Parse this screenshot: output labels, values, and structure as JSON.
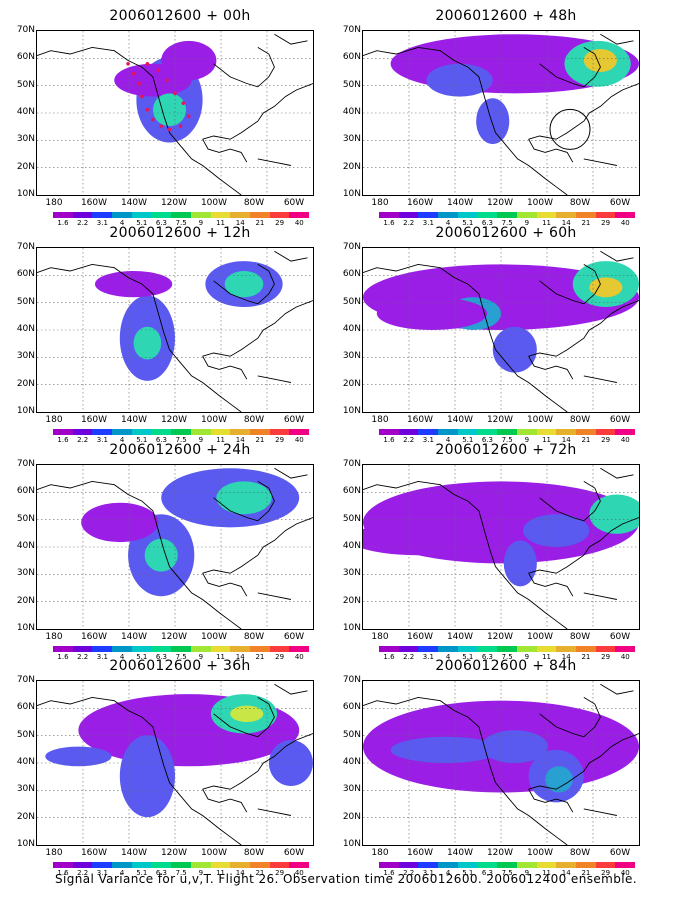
{
  "panels": [
    {
      "title": "2006012600 + 00h",
      "blobs": [
        [
          0.48,
          0.42,
          0.12,
          0.26,
          1
        ],
        [
          0.42,
          0.3,
          0.14,
          0.1,
          0
        ],
        [
          0.55,
          0.18,
          0.1,
          0.12,
          0
        ],
        [
          0.48,
          0.48,
          0.06,
          0.1,
          3
        ]
      ],
      "obs": true,
      "circle": false
    },
    {
      "title": "2006012600 + 12h",
      "blobs": [
        [
          0.4,
          0.55,
          0.1,
          0.26,
          1
        ],
        [
          0.4,
          0.58,
          0.05,
          0.1,
          3
        ],
        [
          0.75,
          0.22,
          0.14,
          0.14,
          1
        ],
        [
          0.75,
          0.22,
          0.07,
          0.08,
          3
        ],
        [
          0.35,
          0.22,
          0.14,
          0.08,
          0
        ]
      ],
      "obs": false,
      "circle": false
    },
    {
      "title": "2006012600 + 24h",
      "blobs": [
        [
          0.45,
          0.55,
          0.12,
          0.25,
          1
        ],
        [
          0.45,
          0.55,
          0.06,
          0.1,
          3
        ],
        [
          0.7,
          0.2,
          0.25,
          0.18,
          1
        ],
        [
          0.75,
          0.2,
          0.1,
          0.1,
          3
        ],
        [
          0.3,
          0.35,
          0.14,
          0.12,
          0
        ]
      ],
      "obs": false,
      "circle": false
    },
    {
      "title": "2006012600 + 36h",
      "blobs": [
        [
          0.55,
          0.3,
          0.4,
          0.22,
          0
        ],
        [
          0.75,
          0.2,
          0.12,
          0.12,
          3
        ],
        [
          0.76,
          0.2,
          0.06,
          0.05,
          4
        ],
        [
          0.4,
          0.58,
          0.1,
          0.25,
          1
        ],
        [
          0.15,
          0.46,
          0.12,
          0.06,
          1
        ],
        [
          0.92,
          0.5,
          0.08,
          0.14,
          1
        ]
      ],
      "obs": false,
      "circle": false
    },
    {
      "title": "2006012600 + 48h",
      "blobs": [
        [
          0.55,
          0.2,
          0.45,
          0.18,
          0
        ],
        [
          0.85,
          0.2,
          0.12,
          0.14,
          3
        ],
        [
          0.86,
          0.18,
          0.06,
          0.07,
          5
        ],
        [
          0.35,
          0.3,
          0.12,
          0.1,
          1
        ],
        [
          0.47,
          0.55,
          0.06,
          0.14,
          1
        ]
      ],
      "obs": false,
      "circle": true
    },
    {
      "title": "2006012600 + 60h",
      "blobs": [
        [
          0.5,
          0.3,
          0.5,
          0.2,
          0
        ],
        [
          0.88,
          0.22,
          0.12,
          0.14,
          3
        ],
        [
          0.88,
          0.24,
          0.06,
          0.06,
          5
        ],
        [
          0.4,
          0.4,
          0.1,
          0.1,
          2
        ],
        [
          0.55,
          0.62,
          0.08,
          0.14,
          1
        ],
        [
          0.25,
          0.4,
          0.2,
          0.1,
          0
        ]
      ],
      "obs": false,
      "circle": false
    },
    {
      "title": "2006012600 + 72h",
      "blobs": [
        [
          0.5,
          0.35,
          0.5,
          0.25,
          0
        ],
        [
          0.92,
          0.3,
          0.1,
          0.12,
          3
        ],
        [
          0.7,
          0.4,
          0.12,
          0.1,
          1
        ],
        [
          0.57,
          0.6,
          0.06,
          0.14,
          1
        ],
        [
          0.2,
          0.45,
          0.25,
          0.1,
          0
        ]
      ],
      "obs": false,
      "circle": false
    },
    {
      "title": "2006012600 + 84h",
      "blobs": [
        [
          0.5,
          0.4,
          0.5,
          0.28,
          0
        ],
        [
          0.3,
          0.42,
          0.2,
          0.08,
          1
        ],
        [
          0.7,
          0.58,
          0.1,
          0.16,
          1
        ],
        [
          0.71,
          0.6,
          0.05,
          0.08,
          2
        ],
        [
          0.55,
          0.4,
          0.12,
          0.1,
          1
        ]
      ],
      "obs": false,
      "circle": false
    }
  ],
  "axes": {
    "ylabels": [
      "70N",
      "60N",
      "50N",
      "40N",
      "30N",
      "20N",
      "10N"
    ],
    "xlabels": [
      "180",
      "160W",
      "140W",
      "120W",
      "100W",
      "80W",
      "60W"
    ]
  },
  "colorbar": {
    "labels": [
      "1.6",
      "2.2",
      "3.1",
      "4",
      "5.1",
      "6.3",
      "7.5",
      "9",
      "11",
      "14",
      "21",
      "29",
      "40"
    ],
    "colors": [
      "#a000c8",
      "#6e00dc",
      "#1e3cff",
      "#0096c8",
      "#00c8c8",
      "#00dc8c",
      "#00c850",
      "#a0e632",
      "#e6dc32",
      "#e6af2d",
      "#f08228",
      "#fa3c3c",
      "#f00082"
    ]
  },
  "footer": "Signal Variance for u,v,T. Flight 26. Observation time 2006012600. 2006012400 ensemble."
}
